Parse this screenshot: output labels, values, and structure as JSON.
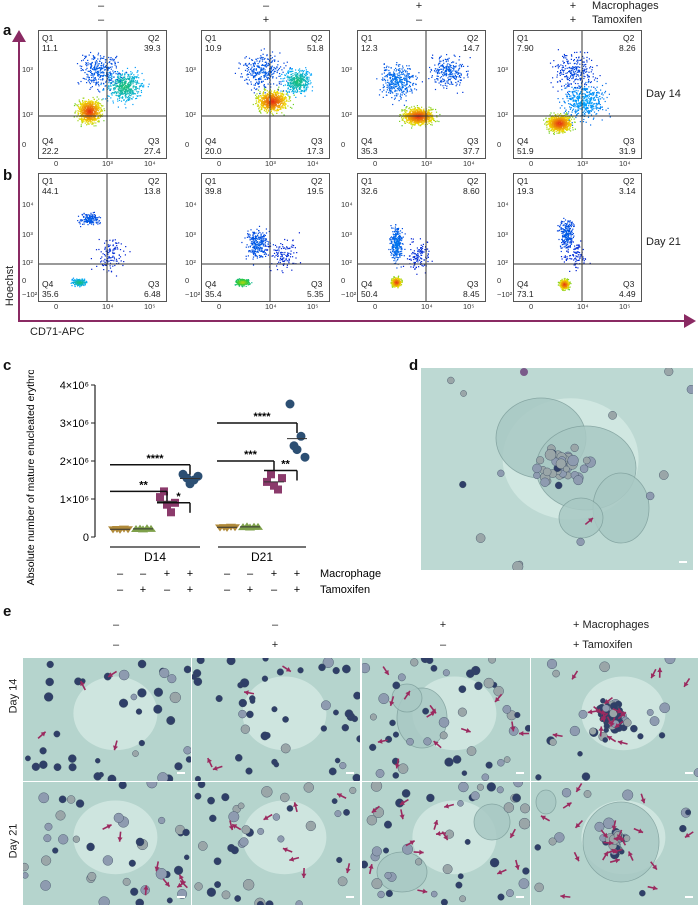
{
  "panel_letters": {
    "a": "a",
    "b": "b",
    "c": "c",
    "d": "d",
    "e": "e"
  },
  "header_a": {
    "macrophages_label": "Macrophages",
    "tamoxifen_label": "Tamoxifen",
    "macrophages": [
      "–",
      "–",
      "+",
      "+"
    ],
    "tamoxifen": [
      "–",
      "+",
      "–",
      "+"
    ]
  },
  "row_labels": {
    "day14": "Day 14",
    "day21": "Day 21"
  },
  "axis_labels": {
    "y": "Hoechst",
    "x": "CD71-APC"
  },
  "facs_row_a": [
    {
      "q1": "Q1",
      "q1v": "11.1",
      "q2": "Q2",
      "q2v": "39.3",
      "q3": "Q3",
      "q3v": "27.4",
      "q4": "Q4",
      "q4v": "22.2"
    },
    {
      "q1": "Q1",
      "q1v": "10.9",
      "q2": "Q2",
      "q2v": "51.8",
      "q3": "Q3",
      "q3v": "17.3",
      "q4": "Q4",
      "q4v": "20.0"
    },
    {
      "q1": "Q1",
      "q1v": "12.3",
      "q2": "Q2",
      "q2v": "14.7",
      "q3": "Q3",
      "q3v": "37.7",
      "q4": "Q4",
      "q4v": "35.3"
    },
    {
      "q1": "Q1",
      "q1v": "7.90",
      "q2": "Q2",
      "q2v": "8.26",
      "q3": "Q3",
      "q3v": "31.9",
      "q4": "Q4",
      "q4v": "51.9"
    }
  ],
  "facs_row_b": [
    {
      "q1": "Q1",
      "q1v": "44.1",
      "q2": "Q2",
      "q2v": "13.8",
      "q3": "Q3",
      "q3v": "6.48",
      "q4": "Q4",
      "q4v": "35.6"
    },
    {
      "q1": "Q1",
      "q1v": "39.8",
      "q2": "Q2",
      "q2v": "19.5",
      "q3": "Q3",
      "q3v": "5.35",
      "q4": "Q4",
      "q4v": "35.4"
    },
    {
      "q1": "Q1",
      "q1v": "32.6",
      "q2": "Q2",
      "q2v": "8.60",
      "q3": "Q3",
      "q3v": "8.45",
      "q4": "Q4",
      "q4v": "50.4"
    },
    {
      "q1": "Q1",
      "q1v": "19.3",
      "q2": "Q2",
      "q2v": "3.14",
      "q3": "Q3",
      "q3v": "4.49",
      "q4": "Q4",
      "q4v": "73.1"
    }
  ],
  "ticks_a": {
    "y": [
      "10³",
      "10²",
      "0"
    ],
    "x": [
      "0",
      "10³",
      "10⁴"
    ]
  },
  "ticks_b": {
    "y": [
      "10⁴",
      "10³",
      "10²",
      "0",
      "−10²"
    ],
    "x": [
      "0",
      "10⁴",
      "10⁵"
    ]
  },
  "chart_data": {
    "type": "scatter",
    "ylabel": "Absolute number of mature enucleated erythroid cells",
    "yticks": [
      "4×10⁶",
      "3×10⁶",
      "2×10⁶",
      "1×10⁶",
      "0"
    ],
    "ylim": [
      0,
      4000000
    ],
    "groups": [
      "D14",
      "D21"
    ],
    "macrophage_label": "Macrophage",
    "tamoxifen_label": "Tamoxifen",
    "macrophage": [
      "–",
      "–",
      "+",
      "+",
      "–",
      "–",
      "+",
      "+"
    ],
    "tamoxifen": [
      "–",
      "+",
      "–",
      "+",
      "–",
      "+",
      "–",
      "+"
    ],
    "colors": [
      "#b08a3a",
      "#7ea04a",
      "#8b3a6b",
      "#2c4f73"
    ],
    "series": [
      {
        "group": "D14",
        "cond": 0,
        "values": [
          200000,
          210000,
          190000,
          220000,
          205000
        ]
      },
      {
        "group": "D14",
        "cond": 1,
        "values": [
          210000,
          220000,
          200000,
          230000,
          215000
        ]
      },
      {
        "group": "D14",
        "cond": 2,
        "values": [
          1050000,
          1200000,
          850000,
          650000,
          900000
        ]
      },
      {
        "group": "D14",
        "cond": 3,
        "values": [
          1650000,
          1550000,
          1400000,
          1500000,
          1600000
        ]
      },
      {
        "group": "D21",
        "cond": 0,
        "values": [
          250000,
          260000,
          240000,
          270000,
          255000
        ]
      },
      {
        "group": "D21",
        "cond": 1,
        "values": [
          260000,
          280000,
          250000,
          270000,
          265000
        ]
      },
      {
        "group": "D21",
        "cond": 2,
        "values": [
          1450000,
          1650000,
          1350000,
          1250000,
          1550000
        ]
      },
      {
        "group": "D21",
        "cond": 3,
        "values": [
          3500000,
          2400000,
          2300000,
          2650000,
          2100000
        ]
      }
    ],
    "significance": [
      {
        "label": "****"
      },
      {
        "label": "**"
      },
      {
        "label": "*"
      },
      {
        "label": "****"
      },
      {
        "label": "***"
      },
      {
        "label": "**"
      }
    ]
  },
  "header_e": {
    "macrophages_label": "+ Macrophages",
    "tamoxifen_label": "+ Tamoxifen",
    "macrophages": [
      "–",
      "–",
      "+"
    ],
    "tamoxifen": [
      "–",
      "+",
      "–"
    ]
  },
  "colors": {
    "accent": "#8a2a63",
    "arrow": "#9b2a5f",
    "stain_bg": "#b7d6cf",
    "nucleus": "#2f3f68"
  }
}
